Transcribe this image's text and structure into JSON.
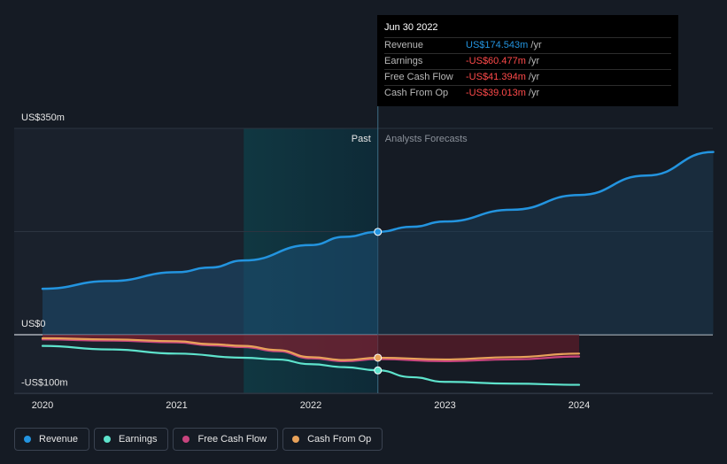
{
  "colors": {
    "background": "#151b24",
    "revenue": "#2394df",
    "earnings": "#5ee3cc",
    "free_cash_flow": "#c8447e",
    "cash_from_op": "#e8a25a",
    "negative_text": "#ff4a4a"
  },
  "tooltip": {
    "date": "Jun 30 2022",
    "rows": [
      {
        "label": "Revenue",
        "value": "US$174.543m",
        "unit": " /yr",
        "sign": "pos"
      },
      {
        "label": "Earnings",
        "value": "-US$60.477m",
        "unit": " /yr",
        "sign": "neg"
      },
      {
        "label": "Free Cash Flow",
        "value": "-US$41.394m",
        "unit": " /yr",
        "sign": "neg"
      },
      {
        "label": "Cash From Op",
        "value": "-US$39.013m",
        "unit": " /yr",
        "sign": "neg"
      }
    ]
  },
  "chart_data": {
    "type": "line",
    "past_label": "Past",
    "forecast_label": "Analysts Forecasts",
    "ylim": [
      -120,
      350
    ],
    "y_ticks": [
      {
        "value": 350,
        "label": "US$350m"
      },
      {
        "value": 0,
        "label": "US$0"
      },
      {
        "value": -100,
        "label": "-US$100m"
      }
    ],
    "x_ticks": [
      {
        "value": 2020.0,
        "label": "2020"
      },
      {
        "value": 2021.0,
        "label": "2021"
      },
      {
        "value": 2022.0,
        "label": "2022"
      },
      {
        "value": 2023.0,
        "label": "2023"
      },
      {
        "value": 2024.0,
        "label": "2024"
      }
    ],
    "xlim": [
      2019.8,
      2025.0
    ],
    "highlight_start": 2021.5,
    "divider_x": 2022.5,
    "series": [
      {
        "name": "Revenue",
        "key": "revenue",
        "points": [
          [
            2020.0,
            78
          ],
          [
            2020.5,
            91
          ],
          [
            2021.0,
            106
          ],
          [
            2021.25,
            114
          ],
          [
            2021.5,
            126
          ],
          [
            2022.0,
            152
          ],
          [
            2022.25,
            166
          ],
          [
            2022.5,
            174.5
          ],
          [
            2022.75,
            183
          ],
          [
            2023.0,
            192
          ],
          [
            2023.5,
            212
          ],
          [
            2024.0,
            237
          ],
          [
            2024.5,
            270
          ],
          [
            2025.0,
            310
          ]
        ],
        "marker": [
          2022.5,
          174.5
        ],
        "fill": true
      },
      {
        "name": "Earnings",
        "key": "earnings",
        "points": [
          [
            2020.0,
            -19
          ],
          [
            2020.5,
            -25
          ],
          [
            2021.0,
            -32
          ],
          [
            2021.5,
            -39
          ],
          [
            2021.75,
            -42
          ],
          [
            2022.0,
            -50
          ],
          [
            2022.25,
            -55
          ],
          [
            2022.5,
            -60.5
          ],
          [
            2022.75,
            -72
          ],
          [
            2023.0,
            -80
          ],
          [
            2023.5,
            -83
          ],
          [
            2024.0,
            -85
          ]
        ],
        "marker": [
          2022.5,
          -60.5
        ]
      },
      {
        "name": "Free Cash Flow",
        "key": "free_cash_flow",
        "points": [
          [
            2020.0,
            -8
          ],
          [
            2020.5,
            -10
          ],
          [
            2021.0,
            -13
          ],
          [
            2021.25,
            -18
          ],
          [
            2021.5,
            -21
          ],
          [
            2021.75,
            -28
          ],
          [
            2022.0,
            -40
          ],
          [
            2022.25,
            -45
          ],
          [
            2022.5,
            -41.4
          ],
          [
            2023.0,
            -45
          ],
          [
            2023.5,
            -42
          ],
          [
            2024.0,
            -37
          ]
        ],
        "fill": true
      },
      {
        "name": "Cash From Op",
        "key": "cash_from_op",
        "points": [
          [
            2020.0,
            -6
          ],
          [
            2020.5,
            -8
          ],
          [
            2021.0,
            -11
          ],
          [
            2021.25,
            -16
          ],
          [
            2021.5,
            -19
          ],
          [
            2021.75,
            -26
          ],
          [
            2022.0,
            -38
          ],
          [
            2022.25,
            -43
          ],
          [
            2022.5,
            -39
          ],
          [
            2023.0,
            -42
          ],
          [
            2023.5,
            -38
          ],
          [
            2024.0,
            -32
          ]
        ],
        "marker": [
          2022.5,
          -39
        ]
      }
    ]
  },
  "legend": [
    {
      "label": "Revenue",
      "key": "revenue"
    },
    {
      "label": "Earnings",
      "key": "earnings"
    },
    {
      "label": "Free Cash Flow",
      "key": "free_cash_flow"
    },
    {
      "label": "Cash From Op",
      "key": "cash_from_op"
    }
  ]
}
